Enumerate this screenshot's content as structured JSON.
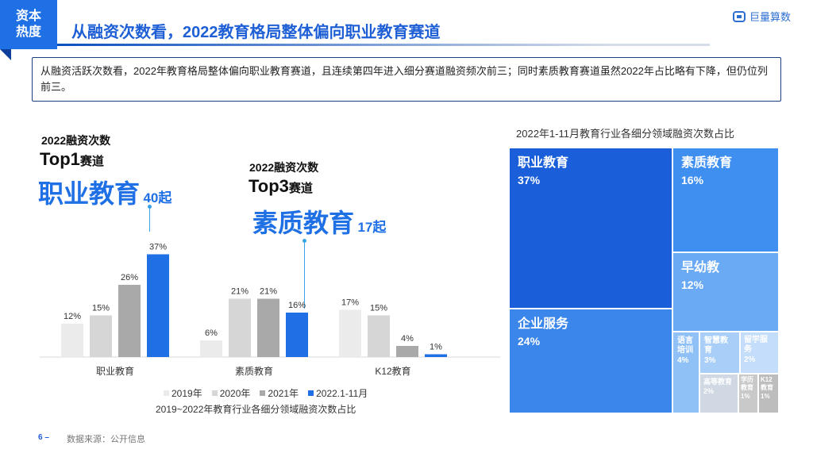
{
  "header": {
    "tag": "资本热度",
    "title": "从融资次数看，2022教育格局整体偏向职业教育赛道",
    "logo": "巨量算数"
  },
  "summary": "从融资活跃次数看，2022年教育格局整体偏向职业教育赛道，且连续第四年进入细分赛道融资频次前三；同时素质教育赛道虽然2022年占比略有下降，但仍位列前三。",
  "callouts": [
    {
      "line1": "2022融资次数",
      "rank_main": "Top1",
      "rank_suffix": "赛道",
      "field": "职业教育",
      "count": "40起"
    },
    {
      "line1": "2022融资次数",
      "rank_main": "Top3",
      "rank_suffix": "赛道",
      "field": "素质教育",
      "count": "17起"
    }
  ],
  "chart_data": [
    {
      "type": "bar",
      "title": "2019~2022年教育行业各细分领域融资次数占比",
      "categories": [
        "职业教育",
        "素质教育",
        "K12教育"
      ],
      "series": [
        {
          "name": "2019年",
          "values": [
            12,
            6,
            17
          ],
          "color": "#ebebeb",
          "labels": [
            "12%",
            "6%",
            "17%"
          ]
        },
        {
          "name": "2020年",
          "values": [
            15,
            21,
            15
          ],
          "color": "#d6d6d6",
          "labels": [
            "15%",
            "21%",
            "15%"
          ]
        },
        {
          "name": "2021年",
          "values": [
            26,
            21,
            4
          ],
          "color": "#a9a9a9",
          "labels": [
            "26%",
            "21%",
            "4%"
          ]
        },
        {
          "name": "2022.1-11月",
          "values": [
            37,
            16,
            1
          ],
          "color": "#1f6fe5",
          "labels": [
            "37%",
            "16%",
            "1%"
          ]
        }
      ],
      "ylim": [
        0,
        40
      ],
      "grid": false,
      "legend": "bottom"
    },
    {
      "type": "treemap",
      "title": "2022年1-11月教育行业各细分领域融资次数占比",
      "items": [
        {
          "name": "职业教育",
          "value": 37,
          "label": "37%",
          "color": "#1a5fd9"
        },
        {
          "name": "企业服务",
          "value": 24,
          "label": "24%",
          "color": "#3a86ea"
        },
        {
          "name": "素质教育",
          "value": 16,
          "label": "16%",
          "color": "#3f8ff0"
        },
        {
          "name": "早幼教",
          "value": 12,
          "label": "12%",
          "color": "#6aaaf4"
        },
        {
          "name": "语言培训",
          "value": 4,
          "label": "4%",
          "color": "#8fc0f6"
        },
        {
          "name": "智慧教育",
          "value": 3,
          "label": "3%",
          "color": "#a9cff8"
        },
        {
          "name": "留学服务",
          "value": 2,
          "label": "2%",
          "color": "#c4ddfa"
        },
        {
          "name": "高等教育",
          "value": 2,
          "label": "2%",
          "color": "#cfd8e3"
        },
        {
          "name": "学历教育",
          "value": 1,
          "label": "1%",
          "color": "#c9c9c9"
        },
        {
          "name": "K12教育",
          "value": 1,
          "label": "1%",
          "color": "#bdbdbd"
        }
      ]
    }
  ],
  "footer": {
    "page": "6 –",
    "source": "数据来源：公开信息"
  }
}
